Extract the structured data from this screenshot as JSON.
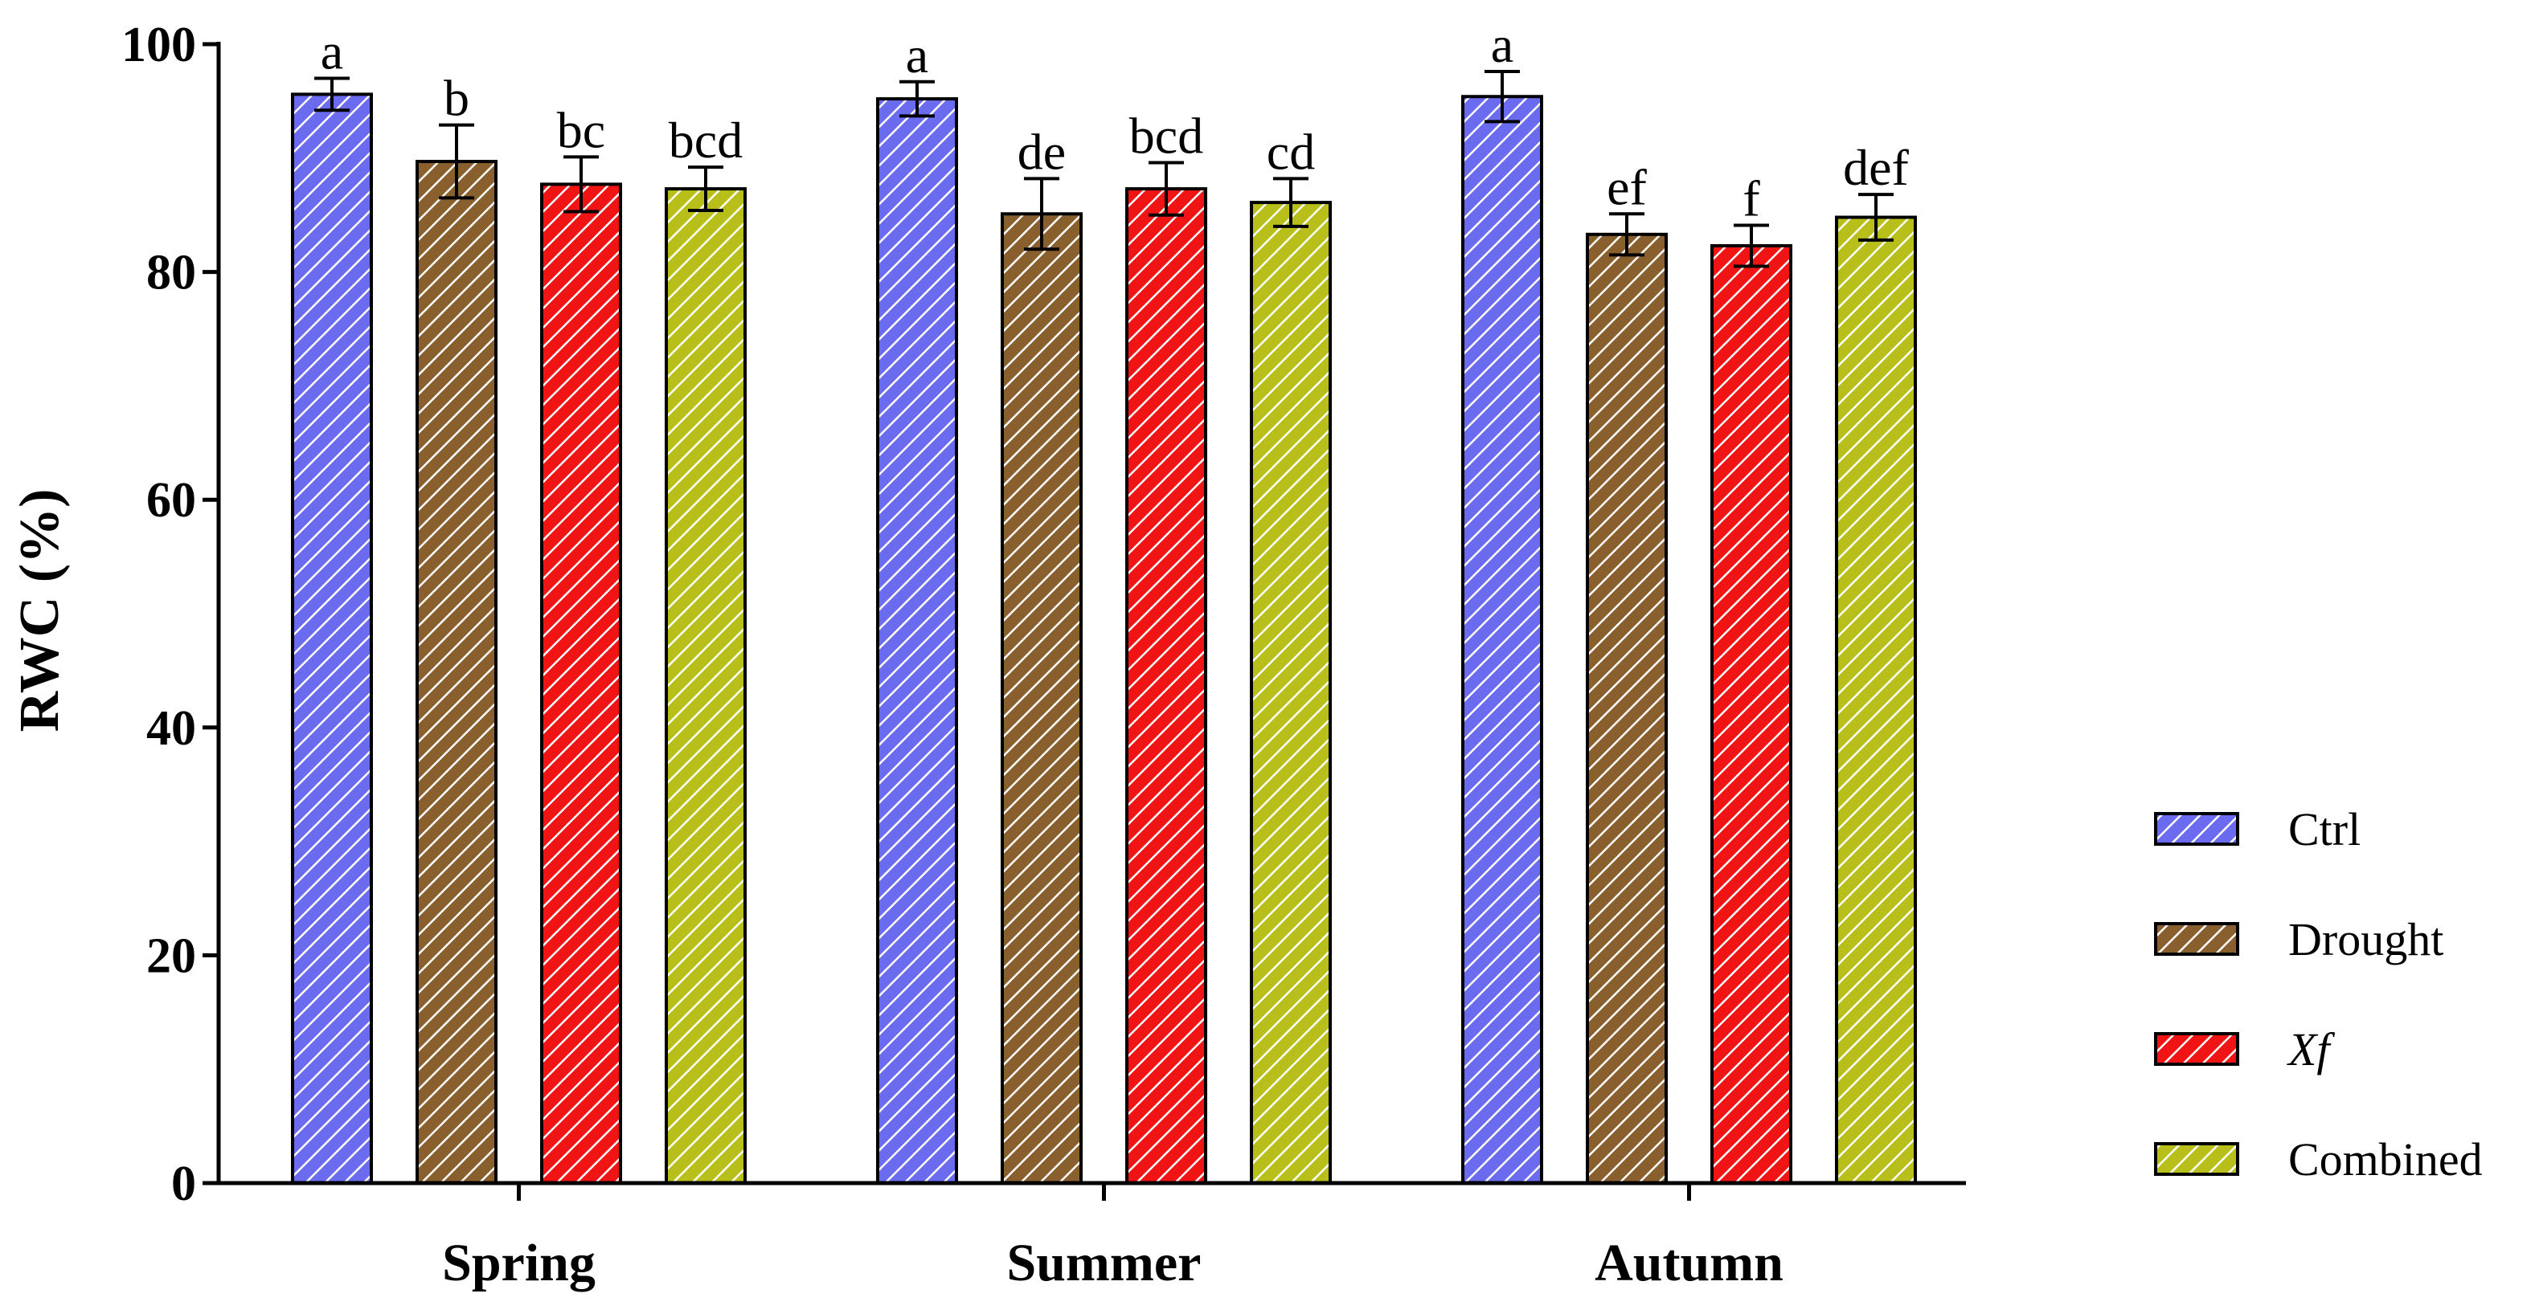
{
  "chart_data": {
    "type": "bar",
    "title": "",
    "xlabel": "",
    "ylabel": "RWC (%)",
    "ylim": [
      0,
      100
    ],
    "yticks": [
      0,
      20,
      40,
      60,
      80,
      100
    ],
    "categories": [
      "Spring",
      "Summer",
      "Autumn"
    ],
    "series": [
      {
        "name": "Ctrl",
        "italic": false,
        "color": "#6b6bef",
        "values": [
          95.6,
          95.2,
          95.4
        ],
        "errors": [
          1.4,
          1.5,
          2.2
        ],
        "letters": [
          "a",
          "a",
          "a"
        ]
      },
      {
        "name": "Drought",
        "italic": false,
        "color": "#8a5f2e",
        "values": [
          89.7,
          85.1,
          83.3
        ],
        "errors": [
          3.2,
          3.1,
          1.8
        ],
        "letters": [
          "b",
          "de",
          "ef"
        ]
      },
      {
        "name": "Xf",
        "italic": true,
        "color": "#f01414",
        "values": [
          87.7,
          87.3,
          82.3
        ],
        "errors": [
          2.4,
          2.3,
          1.8
        ],
        "letters": [
          "bc",
          "bcd",
          "f"
        ]
      },
      {
        "name": "Combined",
        "italic": false,
        "color": "#b8bf1a",
        "values": [
          87.3,
          86.1,
          84.8
        ],
        "errors": [
          1.9,
          2.1,
          2.0
        ],
        "letters": [
          "bcd",
          "cd",
          "def"
        ]
      }
    ],
    "legend_position": "right"
  }
}
